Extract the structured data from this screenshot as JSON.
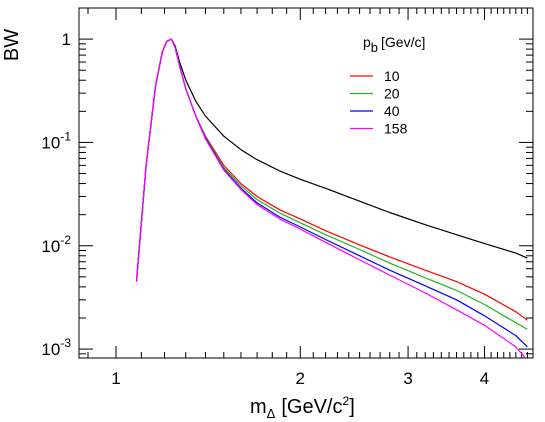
{
  "chart_data": {
    "type": "line",
    "xscale": "log",
    "yscale": "log",
    "xlim": [
      0.87,
      4.8
    ],
    "ylim": [
      0.00082,
      2.0
    ],
    "xlabel": {
      "base": "m",
      "sub": "Δ",
      "unit": "[GeV/c",
      "sup": "2",
      "close": "]"
    },
    "ylabel": "BW",
    "x_ticks": [
      {
        "value": 1,
        "label": "1"
      },
      {
        "value": 2,
        "label": "2"
      },
      {
        "value": 3,
        "label": "3"
      },
      {
        "value": 4,
        "label": "4"
      }
    ],
    "y_ticks": [
      {
        "value": 1,
        "base": "1",
        "exp": ""
      },
      {
        "value": 0.1,
        "base": "10",
        "exp": "-1"
      },
      {
        "value": 0.01,
        "base": "10",
        "exp": "-2"
      },
      {
        "value": 0.001,
        "base": "10",
        "exp": "-3"
      }
    ],
    "legend": {
      "title_base": "p",
      "title_sub": "b",
      "title_unit": "[Gev/c]",
      "position": "top-right",
      "entries": [
        {
          "label": "10",
          "color": "#ff0000"
        },
        {
          "label": "20",
          "color": "#22b522"
        },
        {
          "label": "40",
          "color": "#0000ff"
        },
        {
          "label": "158",
          "color": "#ff00ff"
        }
      ]
    },
    "series": [
      {
        "color": "#000000",
        "x": [
          1.08,
          1.12,
          1.16,
          1.19,
          1.21,
          1.232,
          1.25,
          1.27,
          1.3,
          1.35,
          1.4,
          1.5,
          1.6,
          1.7,
          1.85,
          2.0,
          2.2,
          2.5,
          2.8,
          3.2,
          3.6,
          4.0,
          4.5,
          4.7
        ],
        "y": [
          0.0045,
          0.06,
          0.35,
          0.75,
          0.95,
          1.0,
          0.85,
          0.6,
          0.4,
          0.25,
          0.18,
          0.115,
          0.085,
          0.068,
          0.053,
          0.044,
          0.036,
          0.027,
          0.021,
          0.016,
          0.0128,
          0.0105,
          0.0085,
          0.0076
        ]
      },
      {
        "color": "#ff0000",
        "x": [
          1.08,
          1.12,
          1.16,
          1.19,
          1.21,
          1.232,
          1.25,
          1.27,
          1.3,
          1.35,
          1.4,
          1.5,
          1.6,
          1.7,
          1.85,
          2.0,
          2.2,
          2.5,
          2.8,
          3.2,
          3.6,
          4.0,
          4.5,
          4.7
        ],
        "y": [
          0.0045,
          0.06,
          0.35,
          0.75,
          0.95,
          1.0,
          0.82,
          0.55,
          0.33,
          0.18,
          0.115,
          0.06,
          0.04,
          0.03,
          0.0223,
          0.0182,
          0.014,
          0.0102,
          0.0078,
          0.0058,
          0.0045,
          0.0034,
          0.0023,
          0.0019
        ]
      },
      {
        "color": "#22b522",
        "x": [
          1.08,
          1.12,
          1.16,
          1.19,
          1.21,
          1.232,
          1.25,
          1.27,
          1.3,
          1.35,
          1.4,
          1.5,
          1.6,
          1.7,
          1.85,
          2.0,
          2.2,
          2.5,
          2.8,
          3.2,
          3.6,
          4.0,
          4.5,
          4.7
        ],
        "y": [
          0.0045,
          0.06,
          0.35,
          0.75,
          0.95,
          1.0,
          0.82,
          0.55,
          0.33,
          0.18,
          0.112,
          0.057,
          0.038,
          0.028,
          0.0208,
          0.0167,
          0.0128,
          0.0092,
          0.0068,
          0.0049,
          0.0037,
          0.0027,
          0.0018,
          0.00155
        ]
      },
      {
        "color": "#0000ff",
        "x": [
          1.08,
          1.12,
          1.16,
          1.19,
          1.21,
          1.232,
          1.25,
          1.27,
          1.3,
          1.35,
          1.4,
          1.5,
          1.6,
          1.7,
          1.85,
          2.0,
          2.2,
          2.5,
          2.8,
          3.2,
          3.6,
          4.0,
          4.5,
          4.7
        ],
        "y": [
          0.0045,
          0.06,
          0.35,
          0.75,
          0.95,
          1.0,
          0.82,
          0.55,
          0.33,
          0.18,
          0.11,
          0.055,
          0.036,
          0.026,
          0.019,
          0.0152,
          0.0115,
          0.008,
          0.0058,
          0.0041,
          0.003,
          0.0021,
          0.00135,
          0.00105
        ]
      },
      {
        "color": "#ff00ff",
        "x": [
          1.08,
          1.12,
          1.16,
          1.19,
          1.21,
          1.232,
          1.25,
          1.27,
          1.3,
          1.35,
          1.4,
          1.5,
          1.6,
          1.7,
          1.85,
          2.0,
          2.2,
          2.5,
          2.8,
          3.2,
          3.6,
          4.0,
          4.5,
          4.7
        ],
        "y": [
          0.0045,
          0.06,
          0.35,
          0.75,
          0.95,
          1.0,
          0.82,
          0.55,
          0.33,
          0.18,
          0.108,
          0.054,
          0.035,
          0.025,
          0.0182,
          0.0145,
          0.0108,
          0.0073,
          0.0052,
          0.0035,
          0.0024,
          0.0017,
          0.00105,
          0.00078
        ]
      }
    ]
  }
}
